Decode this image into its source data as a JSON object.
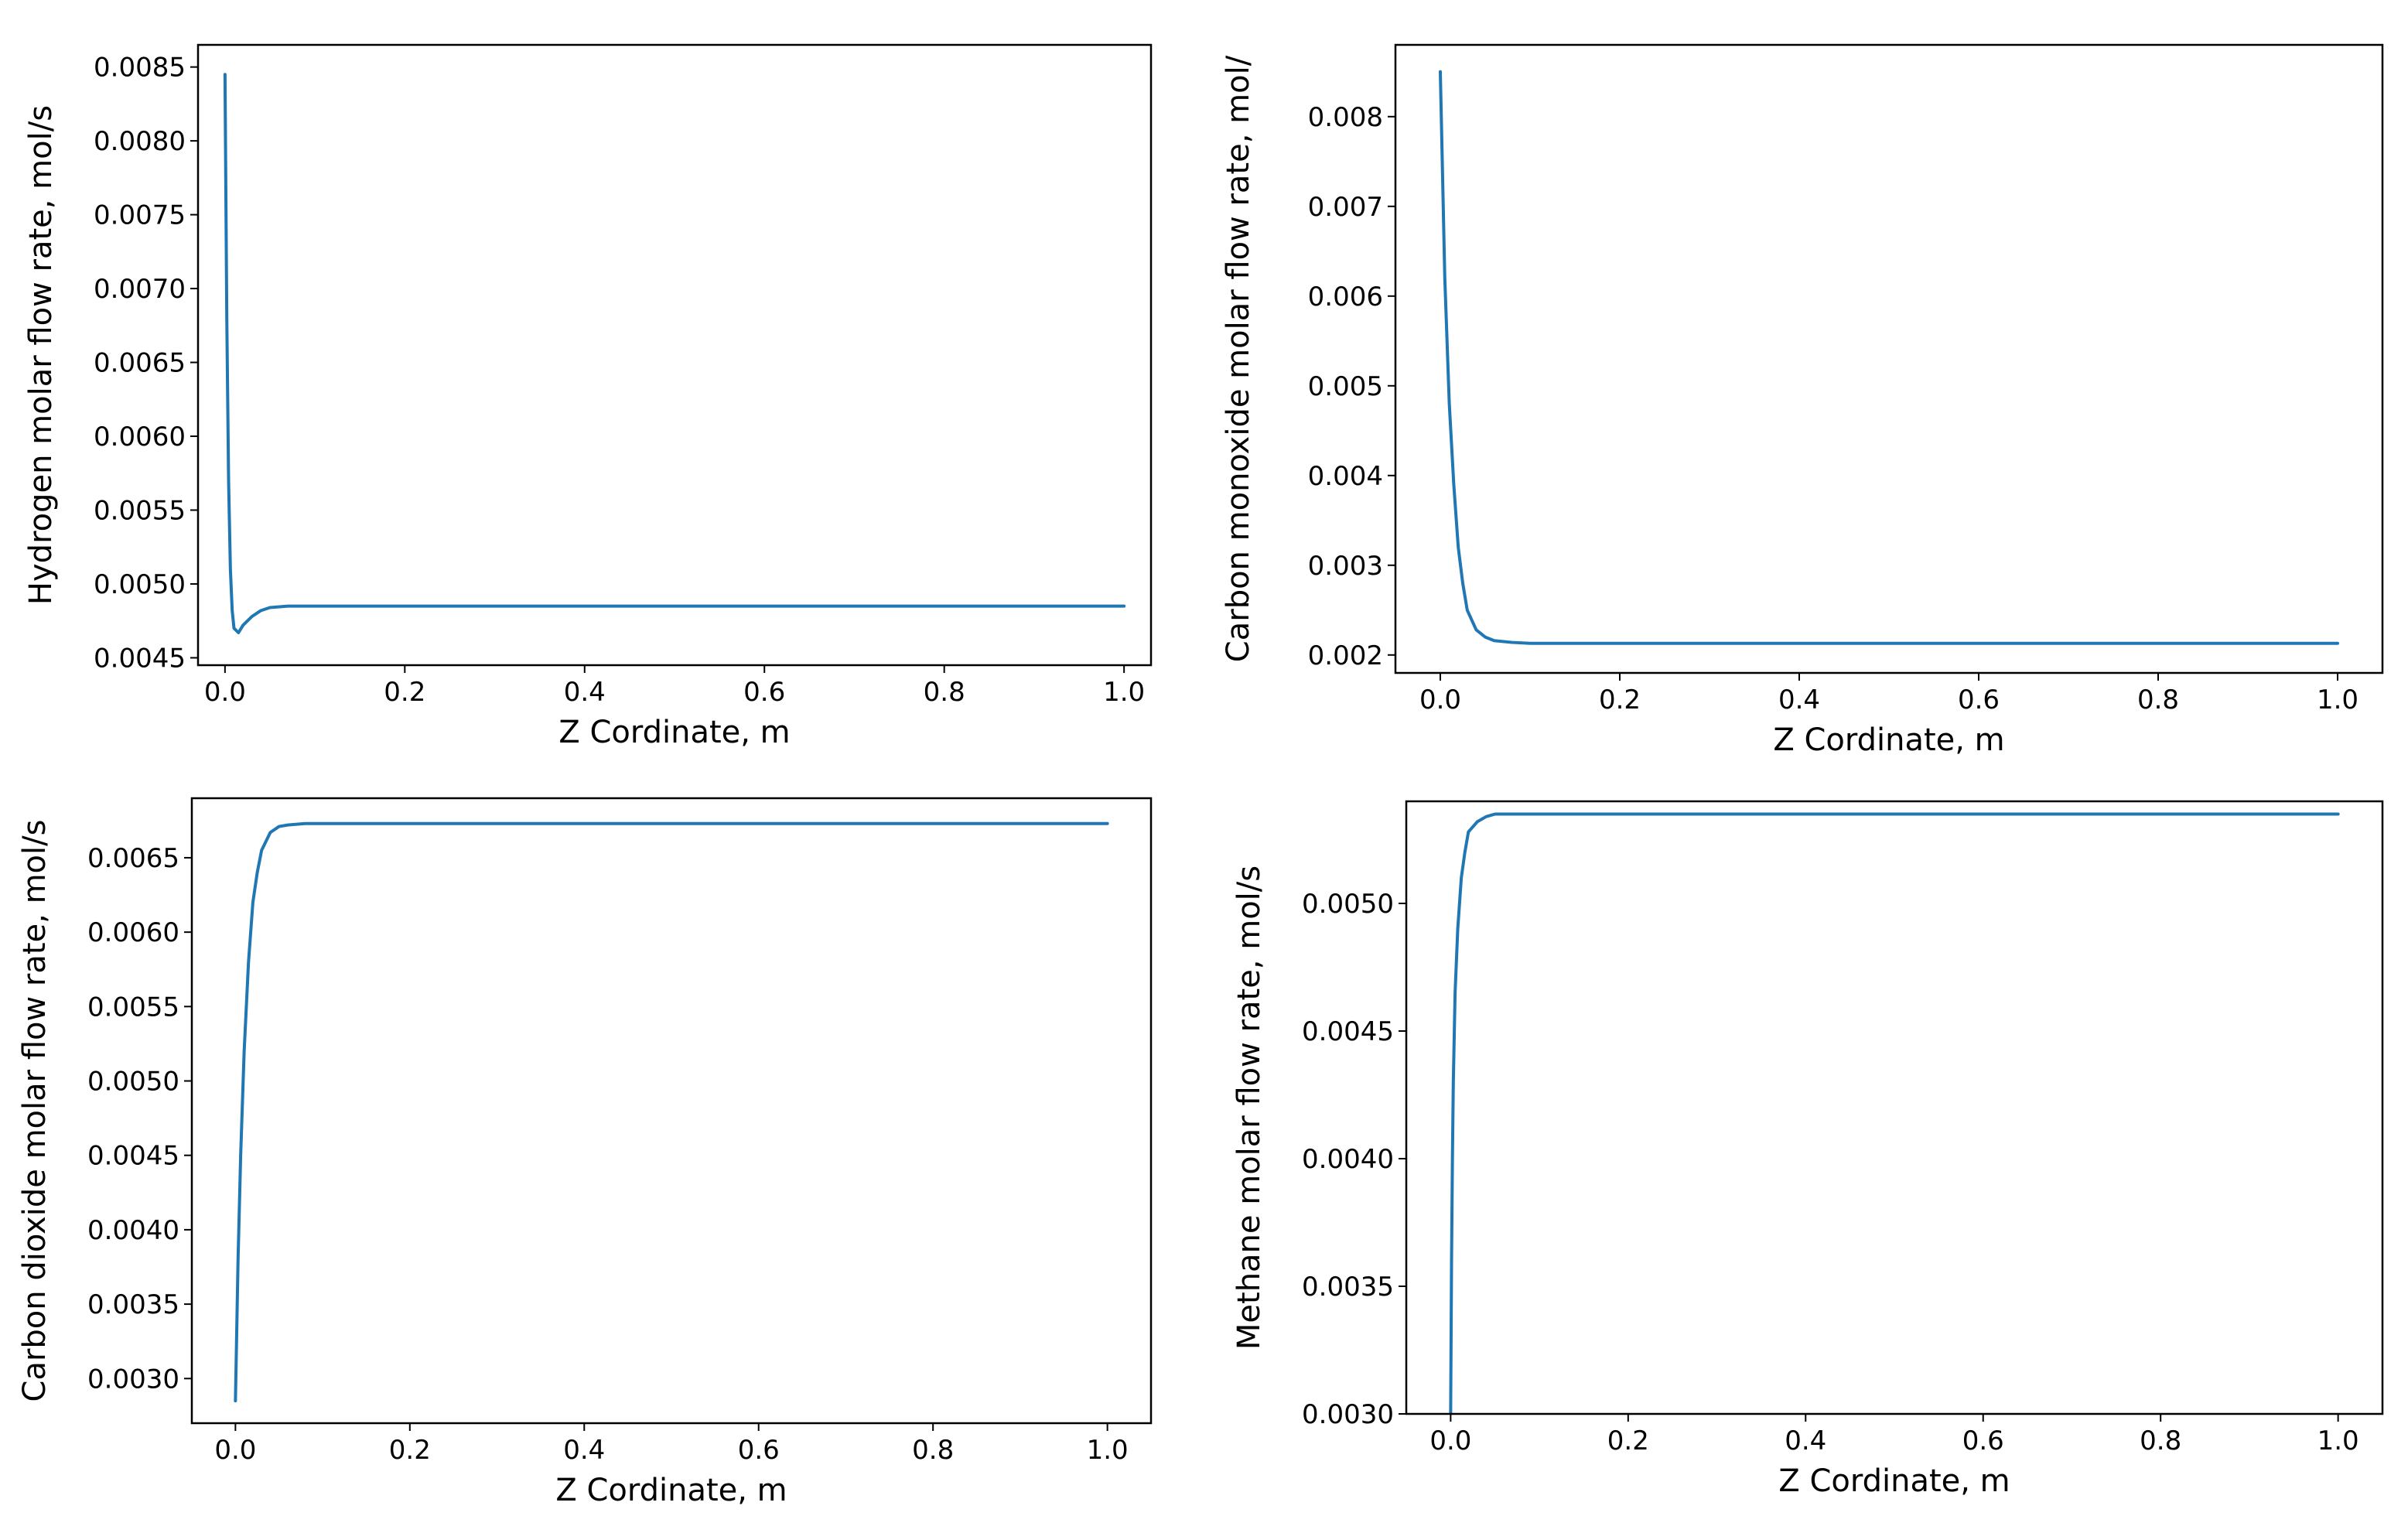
{
  "chart_data": [
    {
      "type": "line",
      "xlabel": "Z Cordinate, m",
      "ylabel": "Hydrogen molar flow rate, mol/s",
      "xlim": [
        -0.03,
        1.03
      ],
      "ylim": [
        0.00445,
        0.00865
      ],
      "xticks": [
        0.0,
        0.2,
        0.4,
        0.6,
        0.8,
        1.0
      ],
      "xtick_labels": [
        "0.0",
        "0.2",
        "0.4",
        "0.6",
        "0.8",
        "1.0"
      ],
      "yticks": [
        0.0045,
        0.005,
        0.0055,
        0.006,
        0.0065,
        0.007,
        0.0075,
        0.008,
        0.0085
      ],
      "ytick_labels": [
        "0.0045",
        "0.0050",
        "0.0055",
        "0.0060",
        "0.0065",
        "0.0070",
        "0.0075",
        "0.0080",
        "0.0085"
      ],
      "series": [
        {
          "x": [
            0.0,
            0.002,
            0.004,
            0.006,
            0.008,
            0.01,
            0.015,
            0.02,
            0.03,
            0.04,
            0.05,
            0.07,
            0.1,
            0.2,
            0.4,
            0.6,
            0.8,
            1.0
          ],
          "y": [
            0.00845,
            0.0068,
            0.0057,
            0.0051,
            0.00482,
            0.0047,
            0.00467,
            0.00472,
            0.00478,
            0.00482,
            0.00484,
            0.00485,
            0.00485,
            0.00485,
            0.00485,
            0.00485,
            0.00485,
            0.00485
          ]
        }
      ]
    },
    {
      "type": "line",
      "xlabel": "Z Cordinate, m",
      "ylabel": "Carbon monoxide molar flow rate, mol/",
      "xlim": [
        -0.05,
        1.05
      ],
      "ylim": [
        0.0018,
        0.0088
      ],
      "xticks": [
        0.0,
        0.2,
        0.4,
        0.6,
        0.8,
        1.0
      ],
      "xtick_labels": [
        "0.0",
        "0.2",
        "0.4",
        "0.6",
        "0.8",
        "1.0"
      ],
      "yticks": [
        0.002,
        0.003,
        0.004,
        0.005,
        0.006,
        0.007,
        0.008
      ],
      "ytick_labels": [
        "0.002",
        "0.003",
        "0.004",
        "0.005",
        "0.006",
        "0.007",
        "0.008"
      ],
      "series": [
        {
          "x": [
            0.0,
            0.005,
            0.01,
            0.015,
            0.02,
            0.025,
            0.03,
            0.04,
            0.05,
            0.06,
            0.08,
            0.1,
            0.2,
            0.4,
            0.6,
            0.8,
            1.0
          ],
          "y": [
            0.0085,
            0.0062,
            0.0048,
            0.0039,
            0.0032,
            0.0028,
            0.0025,
            0.00228,
            0.0022,
            0.00216,
            0.00214,
            0.00213,
            0.00213,
            0.00213,
            0.00213,
            0.00213,
            0.00213
          ]
        }
      ]
    },
    {
      "type": "line",
      "xlabel": "Z Cordinate, m",
      "ylabel": "Carbon dioxide molar flow rate, mol/s",
      "xlim": [
        -0.05,
        1.05
      ],
      "ylim": [
        0.0027,
        0.0069
      ],
      "xticks": [
        0.0,
        0.2,
        0.4,
        0.6,
        0.8,
        1.0
      ],
      "xtick_labels": [
        "0.0",
        "0.2",
        "0.4",
        "0.6",
        "0.8",
        "1.0"
      ],
      "yticks": [
        0.003,
        0.0035,
        0.004,
        0.0045,
        0.005,
        0.0055,
        0.006,
        0.0065
      ],
      "ytick_labels": [
        "0.0030",
        "0.0035",
        "0.0040",
        "0.0045",
        "0.0050",
        "0.0055",
        "0.0060",
        "0.0065"
      ],
      "series": [
        {
          "x": [
            0.0,
            0.003,
            0.006,
            0.01,
            0.015,
            0.02,
            0.025,
            0.03,
            0.04,
            0.05,
            0.06,
            0.08,
            0.1,
            0.2,
            0.4,
            0.6,
            0.8,
            1.0
          ],
          "y": [
            0.00285,
            0.0038,
            0.0045,
            0.0052,
            0.0058,
            0.0062,
            0.0064,
            0.00655,
            0.00667,
            0.00671,
            0.00672,
            0.00673,
            0.00673,
            0.00673,
            0.00673,
            0.00673,
            0.00673,
            0.00673
          ]
        }
      ]
    },
    {
      "type": "line",
      "xlabel": "Z Cordinate, m",
      "ylabel": "Methane molar flow rate, mol/s",
      "xlim": [
        -0.05,
        1.05
      ],
      "ylim": [
        0.003,
        0.0054
      ],
      "xticks": [
        0.0,
        0.2,
        0.4,
        0.6,
        0.8,
        1.0
      ],
      "xtick_labels": [
        "0.0",
        "0.2",
        "0.4",
        "0.6",
        "0.8",
        "1.0"
      ],
      "yticks": [
        0.003,
        0.0035,
        0.004,
        0.0045,
        0.005
      ],
      "ytick_labels": [
        "0.0030",
        "0.0035",
        "0.0040",
        "0.0045",
        "0.0050"
      ],
      "series": [
        {
          "x": [
            0.0,
            0.001,
            0.002,
            0.003,
            0.005,
            0.008,
            0.012,
            0.016,
            0.02,
            0.03,
            0.04,
            0.05,
            0.07,
            0.1,
            0.2,
            0.4,
            0.6,
            0.8,
            1.0
          ],
          "y": [
            0.003,
            0.0036,
            0.004,
            0.0043,
            0.00465,
            0.0049,
            0.0051,
            0.0052,
            0.00528,
            0.00532,
            0.00534,
            0.00535,
            0.00535,
            0.00535,
            0.00535,
            0.00535,
            0.00535,
            0.00535,
            0.00535
          ]
        }
      ]
    }
  ]
}
